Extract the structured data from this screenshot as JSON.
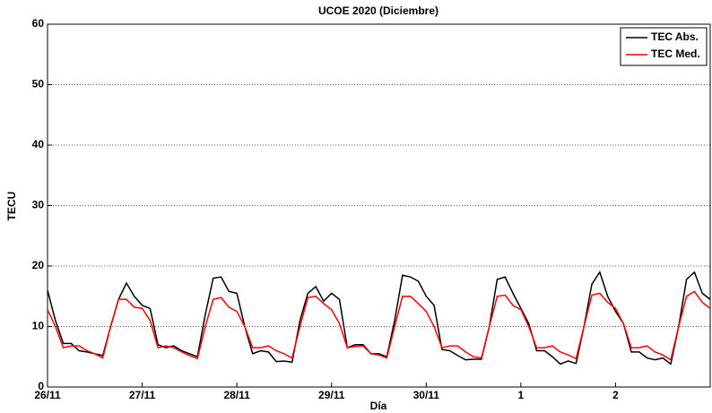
{
  "chart_data": {
    "type": "line",
    "title": "UCOE 2020 (Diciembre)",
    "xlabel": "Día",
    "ylabel": "TECU",
    "x": [
      0,
      2,
      4,
      6,
      8,
      10,
      12,
      14,
      16,
      18,
      20,
      22,
      24,
      26,
      28,
      30,
      32,
      34,
      36,
      38,
      40,
      42,
      44,
      46,
      48,
      50,
      52,
      54,
      56,
      58,
      60,
      62,
      64,
      66,
      68,
      70,
      72,
      74,
      76,
      78,
      80,
      82,
      84,
      86,
      88,
      90,
      92,
      94,
      96,
      98,
      100,
      102,
      104,
      106,
      108,
      110,
      112,
      114,
      116,
      118,
      120,
      122,
      124,
      126,
      128,
      130,
      132,
      134,
      136,
      138,
      140,
      142,
      144,
      146,
      148,
      150,
      152,
      154,
      156,
      158,
      160,
      162,
      164,
      166,
      168
    ],
    "series": [
      {
        "name": "TEC Abs.",
        "color": "#000000",
        "values": [
          16,
          11,
          7.2,
          7.2,
          6,
          5.8,
          5.5,
          5.2,
          10,
          14.5,
          17.2,
          15,
          13.5,
          13,
          7,
          6.5,
          6.8,
          6,
          5.5,
          5,
          12,
          18,
          18.2,
          15.8,
          15.5,
          10,
          5.5,
          6,
          5.8,
          4.2,
          4.3,
          4.1,
          11,
          15.5,
          16.6,
          14.2,
          15.5,
          14.5,
          6.5,
          7,
          7,
          5.5,
          5.5,
          5,
          11,
          18.5,
          18.2,
          17.5,
          15,
          13.5,
          6.2,
          6,
          5.2,
          4.5,
          4.6,
          4.6,
          10,
          17.8,
          18.2,
          15.5,
          13,
          10.5,
          6,
          6,
          5,
          3.8,
          4.3,
          3.9,
          10,
          17,
          19,
          15,
          12.5,
          10.5,
          5.8,
          5.8,
          4.8,
          4.5,
          4.8,
          3.8,
          10,
          17.8,
          19,
          15.5,
          14.5
        ]
      },
      {
        "name": "TEC Med.",
        "color": "#ff0000",
        "values": [
          12.8,
          10,
          6.5,
          6.8,
          6.8,
          6,
          5.5,
          4.8,
          10,
          14.5,
          14.5,
          13.2,
          13,
          11,
          6.5,
          6.8,
          6.5,
          5.8,
          5.2,
          4.7,
          10,
          14.5,
          14.8,
          13.2,
          12.5,
          10,
          6.5,
          6.5,
          6.8,
          6,
          5.5,
          4.8,
          10,
          14.8,
          15,
          13.8,
          12.8,
          10.5,
          6.5,
          6.7,
          6.8,
          5.5,
          5.3,
          4.8,
          10,
          15,
          15,
          13.8,
          12.5,
          10,
          6.5,
          6.8,
          6.8,
          5.8,
          5,
          4.8,
          10,
          15,
          15.2,
          13.5,
          12.8,
          10,
          6.5,
          6.5,
          6.8,
          5.8,
          5.3,
          4.7,
          10,
          15.2,
          15.5,
          14,
          13,
          10.5,
          6.5,
          6.5,
          6.8,
          5.8,
          5.3,
          4.5,
          10,
          15,
          15.8,
          14,
          13
        ]
      }
    ],
    "xlim": [
      0,
      168
    ],
    "xticks": [
      {
        "value": 0,
        "label": "26/11"
      },
      {
        "value": 24,
        "label": "27/11"
      },
      {
        "value": 48,
        "label": "28/11"
      },
      {
        "value": 72,
        "label": "29/11"
      },
      {
        "value": 96,
        "label": "30/11"
      },
      {
        "value": 120,
        "label": "1"
      },
      {
        "value": 144,
        "label": "2"
      }
    ],
    "ylim": [
      0,
      60
    ],
    "yticks": [
      0,
      10,
      20,
      30,
      40,
      50,
      60
    ],
    "grid": true,
    "legend": "upper right"
  }
}
